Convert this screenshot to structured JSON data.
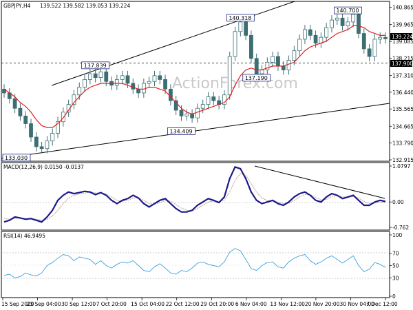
{
  "header": {
    "symbol_timeframe": "GBPJPY,H4",
    "ohlc": "139.522 139.582 139.053 139.224"
  },
  "watermark": "ActionForex.com",
  "colors": {
    "candle": "#3d6e73",
    "ma": "#e02020",
    "trend": "#000000",
    "macd_main": "#1a1a8c",
    "macd_signal": "#c8a08c",
    "rsi": "#3aa0e0",
    "marker_border": "#1a237e",
    "price_tag_bg": "#000000"
  },
  "chart_data": [
    {
      "type": "candlestick",
      "panel": "price",
      "title": "GBPJPY,H4",
      "ylim": [
        132.915,
        141.1
      ],
      "y_tick_labels": [
        "140.865",
        "139.965",
        "139.085",
        "138.215",
        "137.310",
        "136.440",
        "135.565",
        "134.665",
        "133.790",
        "132.915"
      ],
      "current_price": "139.224",
      "horizontal_level": "137.900",
      "annotations": [
        {
          "label": "133.030",
          "value": 133.03,
          "at": "15 Sep 2020"
        },
        {
          "label": "137.839",
          "value": 137.839,
          "at": "5 Oct 2020"
        },
        {
          "label": "134.409",
          "value": 134.409,
          "at": "27 Oct 2020"
        },
        {
          "label": "140.318",
          "value": 140.318,
          "at": "10 Nov 2020"
        },
        {
          "label": "137.190",
          "value": 137.19,
          "at": "13 Nov 2020"
        },
        {
          "label": "140.700",
          "value": 140.7,
          "at": "4 Dec 2020"
        }
      ],
      "series": [
        {
          "name": "close",
          "values": [
            136.4,
            136.1,
            135.6,
            135.2,
            134.8,
            134.1,
            133.6,
            133.5,
            133.9,
            134.3,
            134.9,
            135.4,
            135.8,
            136.3,
            136.7,
            137.1,
            137.4,
            137.2,
            137.5,
            137.0,
            136.8,
            137.1,
            137.3,
            136.9,
            136.6,
            136.4,
            136.9,
            137.0,
            137.3,
            137.1,
            136.6,
            136.0,
            135.5,
            135.2,
            135.3,
            135.1,
            135.6,
            135.8,
            136.2,
            136.0,
            135.8,
            136.3,
            138.3,
            139.6,
            140.1,
            139.4,
            138.2,
            137.4,
            137.6,
            138.0,
            138.3,
            137.8,
            137.6,
            138.1,
            138.6,
            139.2,
            139.7,
            139.4,
            139.0,
            139.3,
            139.8,
            140.2,
            140.3,
            139.9,
            140.1,
            140.5,
            139.5,
            138.7,
            138.3,
            139.2,
            139.3,
            139.22
          ]
        },
        {
          "name": "moving average",
          "values": [
            136.6,
            136.4,
            136.2,
            135.9,
            135.7,
            135.4,
            135.0,
            134.7,
            134.6,
            134.6,
            134.8,
            135.1,
            135.5,
            135.9,
            136.2,
            136.5,
            136.7,
            136.8,
            136.9,
            136.9,
            136.9,
            136.9,
            136.9,
            136.8,
            136.7,
            136.6,
            136.6,
            136.7,
            136.7,
            136.6,
            136.5,
            136.2,
            135.9,
            135.6,
            135.4,
            135.3,
            135.4,
            135.5,
            135.6,
            135.7,
            135.8,
            135.9,
            136.2,
            136.8,
            137.3,
            137.6,
            137.7,
            137.6,
            137.6,
            137.7,
            137.8,
            137.8,
            137.8,
            137.9,
            138.0,
            138.3,
            138.6,
            138.8,
            138.9,
            139.0,
            139.1,
            139.3,
            139.5,
            139.6,
            139.7,
            139.9,
            139.9,
            139.8,
            139.6,
            139.5,
            139.4,
            139.4
          ]
        }
      ]
    },
    {
      "type": "line",
      "panel": "macd",
      "title": "MACD(12,26,9) 0.0150 -0.0137",
      "ylim": [
        -0.762,
        1.0797
      ],
      "y_tick_labels": [
        "1.0797",
        "0.00",
        "-0.762"
      ],
      "series": [
        {
          "name": "macd",
          "values": [
            -0.6,
            -0.55,
            -0.45,
            -0.48,
            -0.52,
            -0.5,
            -0.55,
            -0.6,
            -0.45,
            -0.25,
            0.05,
            0.2,
            0.3,
            0.25,
            0.28,
            0.32,
            0.3,
            0.22,
            0.28,
            0.2,
            0.05,
            -0.05,
            0.05,
            0.1,
            0.2,
            0.12,
            -0.05,
            -0.15,
            -0.05,
            0.05,
            0.1,
            -0.05,
            -0.2,
            -0.3,
            -0.3,
            -0.25,
            -0.1,
            0.0,
            0.1,
            0.05,
            -0.02,
            0.15,
            0.7,
            1.05,
            1.0,
            0.7,
            0.3,
            0.05,
            -0.05,
            0.0,
            0.05,
            -0.05,
            -0.1,
            0.0,
            0.15,
            0.25,
            0.3,
            0.2,
            0.05,
            0.0,
            0.15,
            0.25,
            0.2,
            0.1,
            0.15,
            0.2,
            0.05,
            -0.1,
            -0.1,
            0.0,
            0.05,
            0.015
          ]
        },
        {
          "name": "signal",
          "values": [
            -0.5,
            -0.52,
            -0.5,
            -0.48,
            -0.49,
            -0.5,
            -0.52,
            -0.55,
            -0.52,
            -0.42,
            -0.25,
            -0.05,
            0.12,
            0.2,
            0.24,
            0.27,
            0.29,
            0.27,
            0.27,
            0.24,
            0.15,
            0.05,
            0.02,
            0.05,
            0.12,
            0.13,
            0.05,
            -0.05,
            -0.07,
            -0.02,
            0.04,
            0.02,
            -0.08,
            -0.18,
            -0.25,
            -0.27,
            -0.2,
            -0.1,
            0.0,
            0.03,
            0.01,
            0.06,
            0.3,
            0.65,
            0.85,
            0.8,
            0.55,
            0.3,
            0.12,
            0.04,
            0.03,
            0.0,
            -0.05,
            -0.04,
            0.05,
            0.15,
            0.22,
            0.22,
            0.14,
            0.06,
            0.08,
            0.16,
            0.19,
            0.15,
            0.14,
            0.16,
            0.12,
            0.02,
            -0.05,
            -0.04,
            0.0,
            -0.0137
          ]
        }
      ]
    },
    {
      "type": "line",
      "panel": "rsi",
      "title": "RSI(14) 46.9495",
      "ylim": [
        0,
        100
      ],
      "y_tick_labels": [
        "100",
        "70",
        "50",
        "30",
        "0"
      ],
      "series": [
        {
          "name": "rsi",
          "values": [
            34,
            36,
            30,
            32,
            38,
            35,
            33,
            38,
            50,
            55,
            62,
            68,
            66,
            58,
            64,
            62,
            60,
            52,
            58,
            50,
            46,
            52,
            56,
            54,
            58,
            50,
            42,
            40,
            48,
            53,
            46,
            38,
            36,
            42,
            40,
            46,
            54,
            56,
            52,
            50,
            48,
            56,
            72,
            78,
            74,
            60,
            45,
            42,
            50,
            55,
            56,
            48,
            46,
            56,
            62,
            66,
            68,
            58,
            52,
            56,
            62,
            66,
            60,
            54,
            60,
            66,
            50,
            40,
            44,
            55,
            52,
            46.9495
          ]
        }
      ]
    }
  ],
  "x_axis": {
    "tick_labels": [
      "15 Sep 2020",
      "23 Sep 04:00",
      "30 Sep 12:00",
      "7 Oct 20:00",
      "15 Oct 04:00",
      "22 Oct 12:00",
      "29 Oct 20:00",
      "6 Nov 04:00",
      "13 Nov 12:00",
      "20 Nov 20:00",
      "30 Nov 04:00",
      "7 Dec 12:00"
    ]
  }
}
